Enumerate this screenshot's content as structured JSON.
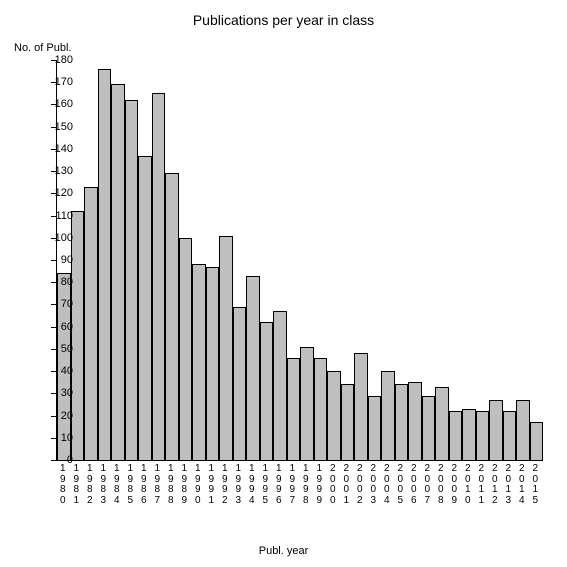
{
  "chart": {
    "type": "bar",
    "title": "Publications per year in class",
    "title_fontsize": 14,
    "y_axis_label": "No. of Publ.",
    "x_axis_label": "Publ. year",
    "label_fontsize": 11,
    "ylim": [
      0,
      180
    ],
    "ytick_step": 10,
    "yticks": [
      0,
      10,
      20,
      30,
      40,
      50,
      60,
      70,
      80,
      90,
      100,
      110,
      120,
      130,
      140,
      150,
      160,
      170,
      180
    ],
    "categories": [
      "1980",
      "1981",
      "1982",
      "1983",
      "1984",
      "1985",
      "1986",
      "1987",
      "1988",
      "1989",
      "1990",
      "1991",
      "1992",
      "1993",
      "1994",
      "1995",
      "1996",
      "1997",
      "1998",
      "1999",
      "2000",
      "2001",
      "2002",
      "2003",
      "2004",
      "2005",
      "2006",
      "2007",
      "2008",
      "2009",
      "2010",
      "2011",
      "2012",
      "2013",
      "2014",
      "2015"
    ],
    "values": [
      84,
      112,
      123,
      176,
      169,
      162,
      137,
      165,
      129,
      100,
      88,
      87,
      101,
      69,
      83,
      62,
      67,
      46,
      51,
      46,
      40,
      34,
      48,
      29,
      40,
      34,
      35,
      29,
      33,
      22,
      23,
      22,
      27,
      22,
      27,
      17
    ],
    "bar_fill": "#bfbfbf",
    "bar_border": "#000000",
    "background_color": "#ffffff",
    "axis_color": "#000000",
    "tick_fontsize": 11
  }
}
